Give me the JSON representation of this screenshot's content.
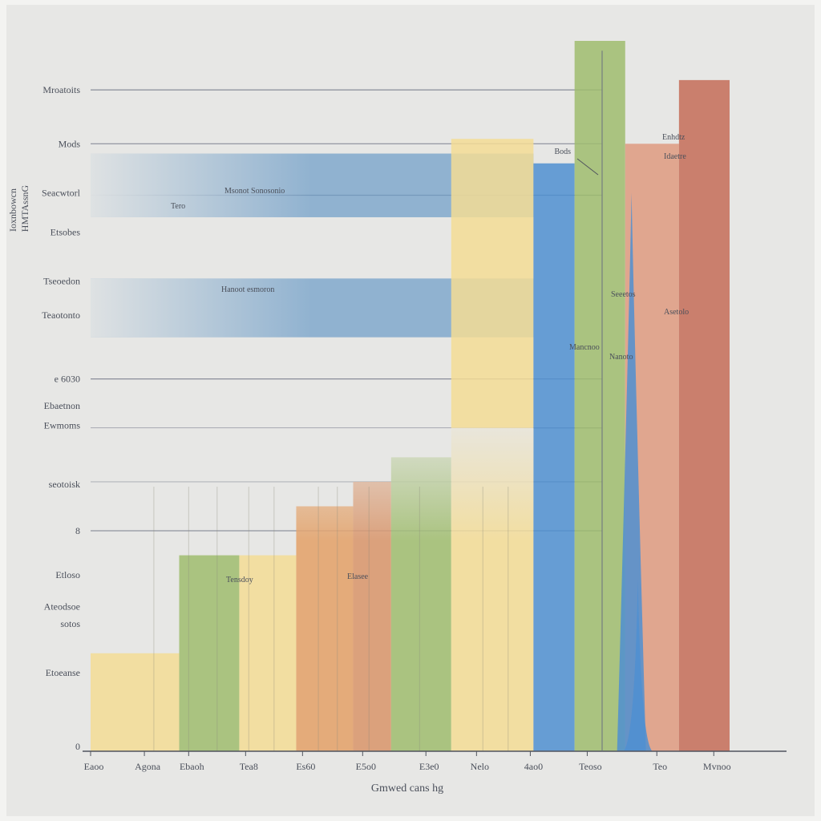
{
  "chart_data": {
    "type": "bar",
    "title": "",
    "xlabel": "Gmwed cans hg",
    "ylabel": "Ioxnbowcn",
    "ylabel2": "HMTAssnG",
    "y_tick_labels": [
      "Mroatoits",
      "Mods",
      "Seacwtorl",
      "Etsobes",
      "Tseoedon",
      "Teaotonto",
      "e 6030",
      "Ebaetnon",
      "Ewmoms",
      "seotoisk",
      "8",
      "Etloso",
      "Ateodsoe",
      "sotos",
      "Etoeanse",
      "0"
    ],
    "x_tick_labels": [
      "Eaoo",
      "Agona",
      "Ebaoh",
      "Tea8",
      "Es60",
      "E5o0",
      "E3e0",
      "Nelo",
      "4ao0",
      "Teoso",
      "Teo",
      "Mvnoo"
    ],
    "annotations": [
      "Bods",
      "Enhdtz",
      "Idaetre",
      "Msonot Sonosonio",
      "Tero",
      "Hanoot esmoron",
      "Seeetos",
      "Asetolo",
      "Mancnoo",
      "Nanoto",
      "Elasee",
      "Tensdoy"
    ],
    "colors": {
      "blue": "#6f9ec8",
      "bright_blue": "#4f8fd1",
      "yellow": "#f3dc95",
      "green": "#9fbc6e",
      "orange": "#e3a067",
      "salmon": "#d8946a",
      "red": "#c46c58",
      "rose": "#de9a80",
      "gridline": "#6a6f80"
    },
    "hbands": [
      {
        "name": "Seacwtorl",
        "color": "#6f9ec8",
        "y_top": 12.2,
        "y_bottom": 10.9,
        "x_end": 7.0
      },
      {
        "name": "Tseoedon",
        "color": "#6f9ec8",
        "y_top": 9.65,
        "y_bottom": 8.45,
        "x_end": 7.0
      }
    ],
    "vbars": [
      {
        "category": "Eaoo-Agona",
        "color": "#f3dc95",
        "value": 2.0
      },
      {
        "category": "Ebaoh",
        "color": "#9fbc6e",
        "value": 4.0
      },
      {
        "category": "Tea8",
        "color": "#f3dc95",
        "value": 4.0
      },
      {
        "category": "Es60",
        "color": "#e3a067",
        "value": 5.0
      },
      {
        "category": "E5o0",
        "color": "#d8946a",
        "value": 5.5
      },
      {
        "category": "E3e0",
        "color": "#9fbc6e",
        "value": 6.0
      },
      {
        "category": "4ao0",
        "color": "#f3dc95",
        "value": 12.5
      },
      {
        "category": "Teoso",
        "color": "#4f8fd1",
        "value": 12.0
      },
      {
        "category": "Teoso-b",
        "color": "#9fbc6e",
        "value": 14.5
      },
      {
        "category": "Teo",
        "color": "#de9a80",
        "value": 12.4
      },
      {
        "category": "Mvnoo",
        "color": "#c46c58",
        "value": 13.7
      }
    ],
    "spikes": [
      {
        "x": 8.55,
        "value": 11.4,
        "color": "#4f8fd1"
      },
      {
        "x": 8.65,
        "value": 3.5,
        "color": "#4f8fd1"
      }
    ],
    "ylim": [
      0,
      14.5
    ],
    "xlim": [
      0,
      11
    ],
    "grid": true,
    "legend": "none"
  }
}
